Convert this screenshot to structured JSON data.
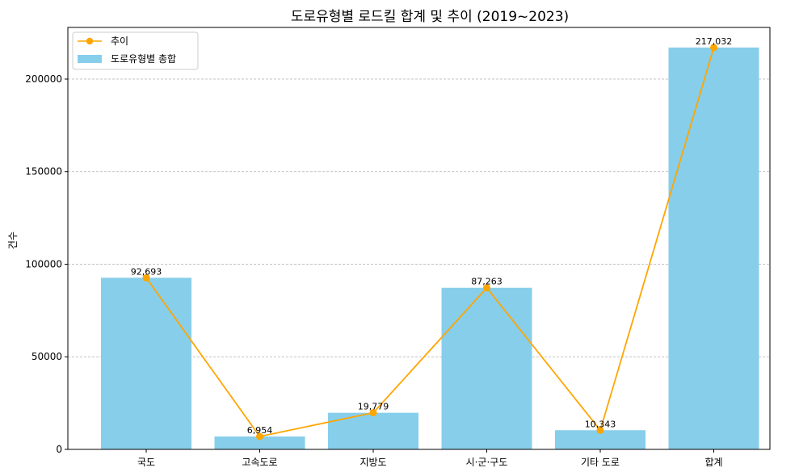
{
  "chart_data": {
    "type": "bar",
    "title": "도로유형별 로드킬 합계 및 추이 (2019~2023)",
    "xlabel": "",
    "ylabel": "건수",
    "categories": [
      "국도",
      "고속도로",
      "지방도",
      "시·군·구도",
      "기타 도로",
      "합계"
    ],
    "series": [
      {
        "name": "도로유형별 총합",
        "kind": "bar",
        "color": "#87ceeb",
        "values": [
          92693,
          6954,
          19779,
          87263,
          10343,
          217032
        ]
      },
      {
        "name": "추이",
        "kind": "line",
        "color": "#ffa500",
        "values": [
          92693,
          6954,
          19779,
          87263,
          10343,
          217032
        ]
      }
    ],
    "data_labels": [
      "92,693",
      "6,954",
      "19,779",
      "87,263",
      "10,343",
      "217,032"
    ],
    "y_ticks": [
      0,
      50000,
      100000,
      150000,
      200000
    ],
    "y_tick_labels": [
      "0",
      "50000",
      "100000",
      "150000",
      "200000"
    ],
    "ylim": [
      0,
      227883
    ],
    "grid": "y-dashed",
    "legend_position": "top-left"
  }
}
